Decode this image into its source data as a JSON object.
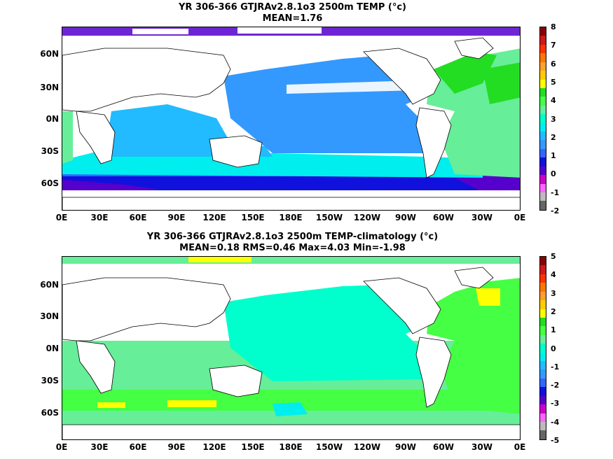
{
  "panels": [
    {
      "title_line1": "YR 306-366 GTJRAv2.8.1o3 2500m TEMP (°c)",
      "title_line2": "MEAN=1.76",
      "y_ticks": [
        "60N",
        "30N",
        "0N",
        "30S",
        "60S"
      ],
      "x_ticks": [
        "0E",
        "30E",
        "60E",
        "90E",
        "120E",
        "150E",
        "180E",
        "150W",
        "120W",
        "90W",
        "60W",
        "30W",
        "0E"
      ],
      "colorbar_ticks": [
        "8",
        "7",
        "6",
        "5",
        "4",
        "3",
        "2",
        "1",
        "0",
        "-1",
        "-2"
      ],
      "colorbar_colors": [
        "#8b0000",
        "#cc1a1a",
        "#ff3300",
        "#ff7700",
        "#ff9f2e",
        "#ffcc00",
        "#ffff00",
        "#22dd22",
        "#44ff44",
        "#66ee99",
        "#00ffcc",
        "#00eeee",
        "#22bbff",
        "#3399ff",
        "#3366ff",
        "#1111dd",
        "#5500cc",
        "#cc00cc",
        "#ff66ff",
        "#bbbbbb",
        "#666666"
      ]
    },
    {
      "title_line1": "YR 306-366 GTJRAv2.8.1o3 2500m TEMP-climatology (°c)",
      "title_line2": "MEAN=0.18   RMS=0.46   Max=4.03   Min=-1.98",
      "y_ticks": [
        "60N",
        "30N",
        "0N",
        "30S",
        "60S"
      ],
      "x_ticks": [
        "0E",
        "30E",
        "60E",
        "90E",
        "120E",
        "150E",
        "180E",
        "150W",
        "120W",
        "90W",
        "60W",
        "30W",
        "0E"
      ],
      "colorbar_ticks": [
        "5",
        "4",
        "3",
        "2",
        "1",
        "0",
        "-1",
        "-2",
        "-3",
        "-4",
        "-5"
      ],
      "colorbar_colors": [
        "#8b0000",
        "#cc1a1a",
        "#ff3300",
        "#ff7700",
        "#ff9f2e",
        "#ffcc00",
        "#ffff00",
        "#22dd22",
        "#44ff44",
        "#66ee99",
        "#00ffcc",
        "#00eeee",
        "#22bbff",
        "#3399ff",
        "#3366ff",
        "#1111dd",
        "#5500cc",
        "#cc00cc",
        "#ff66ff",
        "#bbbbbb",
        "#666666"
      ]
    }
  ]
}
